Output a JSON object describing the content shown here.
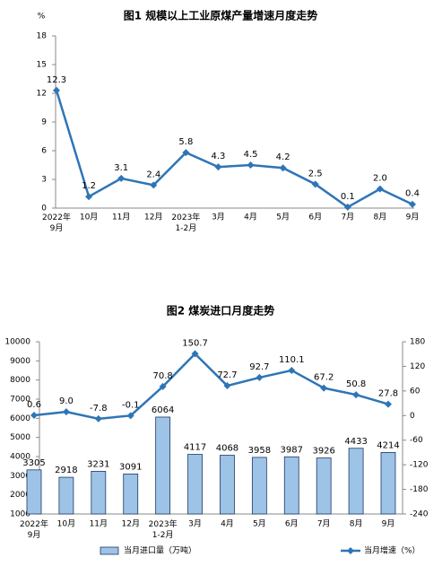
{
  "chart_data": [
    {
      "type": "line",
      "title": "图1  规模以上工业原煤产量增速月度走势",
      "y_label": "%",
      "categories": [
        "2022年\n9月",
        "10月",
        "11月",
        "12月",
        "2023年\n1-2月",
        "3月",
        "4月",
        "5月",
        "6月",
        "7月",
        "8月",
        "9月"
      ],
      "values": [
        12.3,
        1.2,
        3.1,
        2.4,
        5.8,
        4.3,
        4.5,
        4.2,
        2.5,
        0.1,
        2.0,
        0.4
      ],
      "value_labels": [
        "12.3",
        "1.2",
        "3.1",
        "2.4",
        "5.8",
        "4.3",
        "4.5",
        "4.2",
        "2.5",
        "0.1",
        "2.0",
        "0.4"
      ],
      "color": "#2e75b6",
      "ylim": [
        0,
        18
      ],
      "yticks": [
        0,
        3,
        6,
        9,
        12,
        15,
        18
      ],
      "grid": false
    },
    {
      "type": "bar-line",
      "title": "图2  煤炭进口月度走势",
      "categories": [
        "2022年\n9月",
        "10月",
        "11月",
        "12月",
        "2023年\n1-2月",
        "3月",
        "4月",
        "5月",
        "6月",
        "7月",
        "8月",
        "9月"
      ],
      "series": [
        {
          "name": "当月进口量（万吨）",
          "type": "bar",
          "color": "#9dc3e6",
          "values": [
            3305,
            2918,
            3231,
            3091,
            6064,
            4117,
            4068,
            3958,
            3987,
            3926,
            4433,
            4214
          ]
        },
        {
          "name": "当月增速（%）",
          "type": "line",
          "axis": "y2",
          "color": "#2e75b6",
          "values": [
            0.6,
            9.0,
            -7.8,
            -0.1,
            70.8,
            150.7,
            72.7,
            92.7,
            110.1,
            67.2,
            50.8,
            27.8
          ],
          "value_labels": [
            "0.6",
            "9.0",
            "-7.8",
            "-0.1",
            "70.8",
            "150.7",
            "72.7",
            "92.7",
            "110.1",
            "67.2",
            "50.8",
            "27.8"
          ]
        }
      ],
      "ylim": [
        1000,
        10000
      ],
      "yticks": [
        1000,
        2000,
        3000,
        4000,
        5000,
        6000,
        7000,
        8000,
        9000,
        10000
      ],
      "y2lim": [
        -240,
        180
      ],
      "y2ticks": [
        -240,
        -180,
        -120,
        -60,
        0,
        60,
        120,
        180
      ],
      "grid": false,
      "legend": "bottom"
    }
  ]
}
